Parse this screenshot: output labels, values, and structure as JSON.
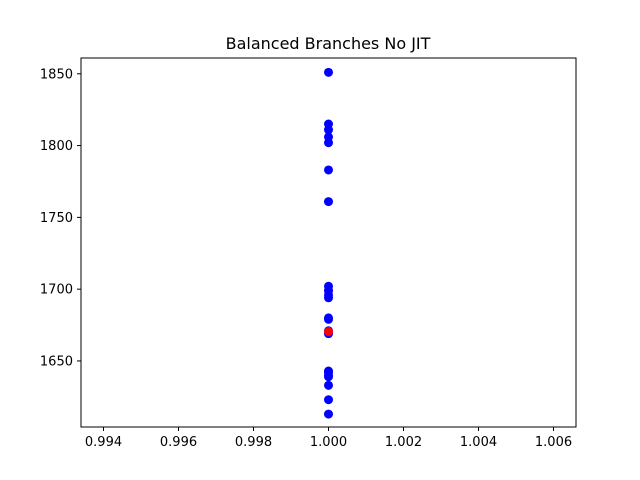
{
  "chart_data": {
    "type": "scatter",
    "title": "Balanced Branches No JIT",
    "xlabel": "",
    "ylabel": "",
    "xlim": [
      0.9934,
      1.0066
    ],
    "ylim": [
      1604,
      1861
    ],
    "x_ticks": [
      0.994,
      0.996,
      0.998,
      1.0,
      1.002,
      1.004,
      1.006
    ],
    "x_tick_labels": [
      "0.994",
      "0.996",
      "0.998",
      "1.000",
      "1.002",
      "1.004",
      "1.006"
    ],
    "y_ticks": [
      1650,
      1700,
      1750,
      1800,
      1850
    ],
    "y_tick_labels": [
      "1650",
      "1700",
      "1750",
      "1800",
      "1850"
    ],
    "grid": false,
    "legend": "none",
    "series": [
      {
        "color": "#0000ff",
        "x": [
          1.0,
          1.0,
          1.0,
          1.0,
          1.0,
          1.0,
          1.0,
          1.0,
          1.0,
          1.0,
          1.0,
          1.0,
          1.0,
          1.0,
          1.0,
          1.0,
          1.0,
          1.0,
          1.0,
          1.0,
          1.0,
          1.0
        ],
        "y": [
          1851,
          1815,
          1811,
          1806,
          1802,
          1783,
          1761,
          1702,
          1699,
          1696,
          1694,
          1680,
          1679,
          1671,
          1669,
          1643,
          1642,
          1640,
          1639,
          1633,
          1623,
          1613
        ]
      },
      {
        "color": "#ff0000",
        "x": [
          1.0
        ],
        "y": [
          1670.5
        ]
      }
    ]
  }
}
